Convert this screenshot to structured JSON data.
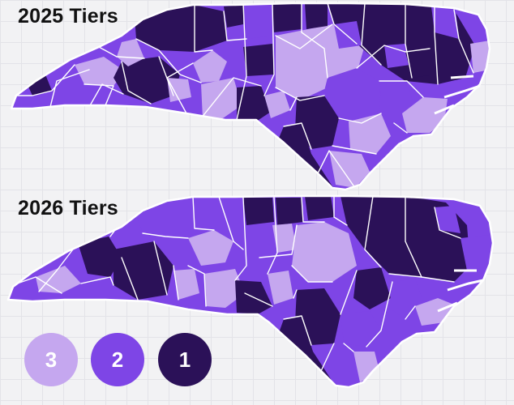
{
  "maps": {
    "map_2025": {
      "title": "2025 Tiers"
    },
    "map_2026": {
      "title": "2026 Tiers"
    }
  },
  "legend": [
    {
      "label": "3",
      "color": "#c5a7ef"
    },
    {
      "label": "2",
      "color": "#7e45e6"
    },
    {
      "label": "1",
      "color": "#2b1158"
    }
  ],
  "colors": {
    "tier_3": "#c5a7ef",
    "tier_2": "#7e45e6",
    "tier_1": "#2b1158",
    "background": "#f2f2f4",
    "borders": "#ffffff"
  }
}
